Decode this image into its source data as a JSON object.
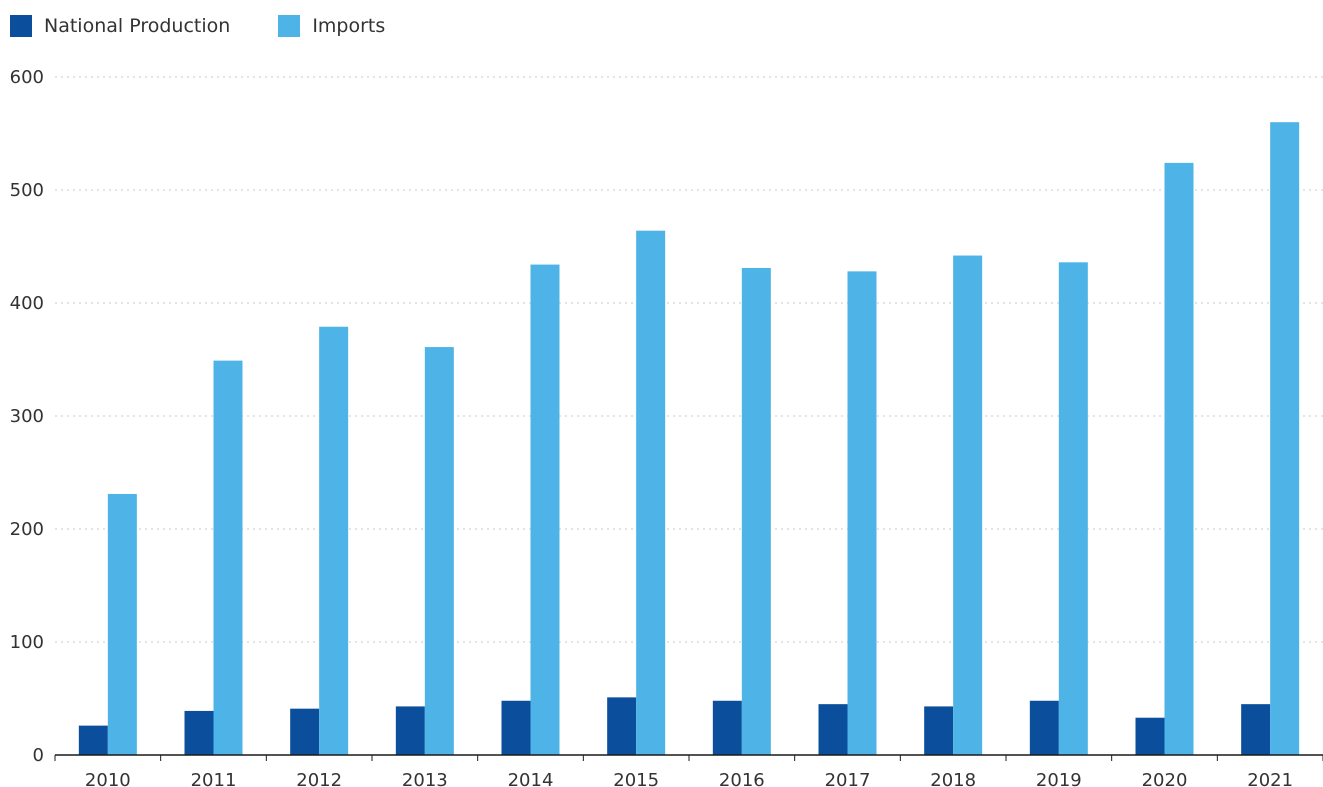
{
  "chart_data": {
    "type": "bar",
    "categories": [
      "2010",
      "2011",
      "2012",
      "2013",
      "2014",
      "2015",
      "2016",
      "2017",
      "2018",
      "2019",
      "2020",
      "2021"
    ],
    "series": [
      {
        "name": "National Production",
        "color": "#0b4f9c",
        "values": [
          26,
          39,
          41,
          43,
          48,
          51,
          48,
          45,
          43,
          48,
          33,
          45
        ]
      },
      {
        "name": "Imports",
        "color": "#4eb3e6",
        "values": [
          231,
          349,
          379,
          361,
          434,
          464,
          431,
          428,
          442,
          436,
          524,
          560
        ]
      }
    ],
    "y_ticks": [
      "0",
      "100",
      "200",
      "300",
      "400",
      "500",
      "600"
    ],
    "ylim": [
      0,
      600
    ],
    "grid": true,
    "grid_style": "dotted",
    "legend_position": "top-left",
    "title": "",
    "xlabel": "",
    "ylabel": ""
  }
}
